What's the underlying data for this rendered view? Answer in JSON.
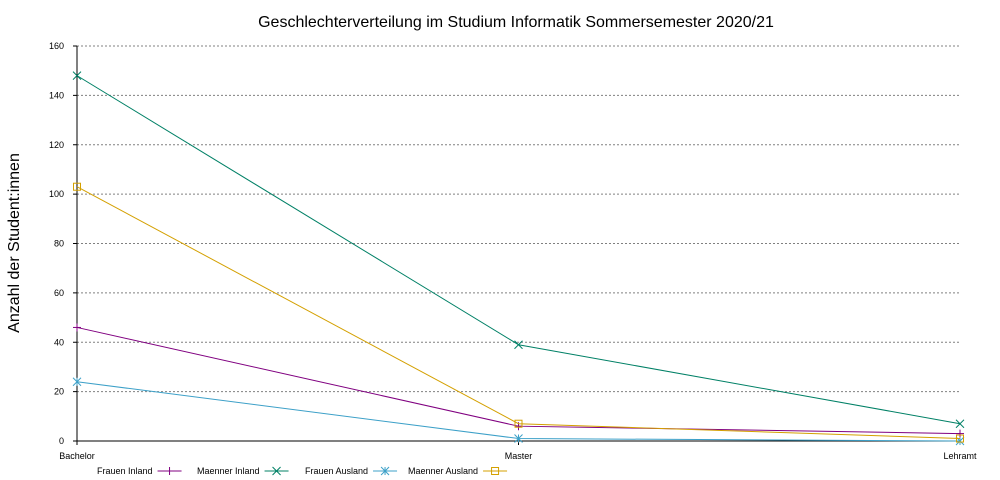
{
  "chart_data": {
    "type": "line",
    "title": "Geschlechterverteilung im Studium Informatik Sommersemester 2020/21",
    "xlabel": "",
    "ylabel": "Anzahl der Student:innen",
    "categories": [
      "Bachelor",
      "Master",
      "Lehramt"
    ],
    "ylim": [
      0,
      160
    ],
    "yticks": [
      0,
      20,
      40,
      60,
      80,
      100,
      120,
      140,
      160
    ],
    "grid": true,
    "legend_position": "bottom",
    "series": [
      {
        "name": "Frauen Inland",
        "values": [
          46,
          6,
          3
        ],
        "color": "#800080",
        "marker": "plus"
      },
      {
        "name": "Maenner Inland",
        "values": [
          148,
          39,
          7
        ],
        "color": "#008066",
        "marker": "x"
      },
      {
        "name": "Frauen Ausland",
        "values": [
          24,
          1,
          0
        ],
        "color": "#3ca0c8",
        "marker": "star"
      },
      {
        "name": "Maenner Ausland",
        "values": [
          103,
          7,
          1
        ],
        "color": "#d4a000",
        "marker": "square"
      }
    ]
  }
}
